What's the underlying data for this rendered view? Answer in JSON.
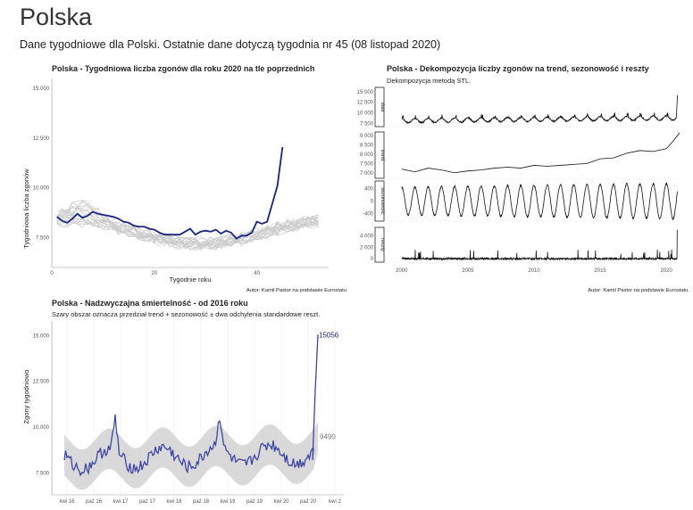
{
  "header": {
    "title": "Polska",
    "subtitle": "Dane tygodniowe dla Polski. Ostatnie dane dotyczą tygodnia nr 45 (08 listopad 2020)"
  },
  "colors": {
    "highlight": "#1a237e",
    "grey_lines": "#cccccc",
    "band": "#d9d9d9",
    "excess_line": "#3f45a3",
    "annot_grey": "#777777"
  },
  "chart_data": [
    {
      "type": "line",
      "title": "Polska - Tygodniowa liczba zgonów dla roku 2020 na tle poprzednich",
      "xlabel": "Tygodnie roku",
      "ylabel": "Tygodniowa liczba zgonów",
      "caption": "Autor: Kamil Pastor na podstawie Eurostatu",
      "xlim": [
        1,
        53
      ],
      "ylim": [
        6000,
        15500
      ],
      "x_ticks": [
        0,
        20,
        40
      ],
      "y_ticks": [
        7500,
        10000,
        12500,
        15000
      ],
      "y_tick_labels": [
        "7.500",
        "10.000",
        "12.500",
        "15.000"
      ],
      "grid": true,
      "highlight_series": {
        "x": [
          1,
          2,
          3,
          4,
          5,
          6,
          7,
          8,
          9,
          10,
          11,
          12,
          13,
          14,
          15,
          16,
          17,
          18,
          19,
          20,
          21,
          22,
          23,
          24,
          25,
          26,
          27,
          28,
          29,
          30,
          31,
          32,
          33,
          34,
          35,
          36,
          37,
          38,
          39,
          40,
          41,
          42,
          43,
          44,
          45
        ],
        "values": [
          8550,
          8350,
          8250,
          8450,
          8700,
          8500,
          8600,
          8800,
          8700,
          8650,
          8600,
          8550,
          8450,
          8300,
          8250,
          8100,
          8050,
          8050,
          7950,
          7900,
          7750,
          7650,
          7650,
          7650,
          7650,
          7800,
          7950,
          7650,
          7800,
          7850,
          7800,
          7900,
          7700,
          7850,
          7750,
          7450,
          7600,
          7600,
          7750,
          8300,
          8200,
          8300,
          9200,
          10100,
          12050
        ]
      },
      "background_series_count": 20
    },
    {
      "type": "line",
      "title": "Polska - Dekompozycja liczby zgonów na trend, sezonowość i reszty",
      "subtitle": "Dekompozycja metodą STL.",
      "caption": "Autor: Kamil Pastor na podstawie Eurostatu.",
      "xlim": [
        1999,
        2021
      ],
      "x_ticks": [
        2000,
        2005,
        2010,
        2015,
        2020
      ],
      "panels": [
        {
          "name": "data",
          "y_ticks": [
            7500,
            10000,
            12500,
            15000
          ],
          "y_tick_labels": [
            "7 500",
            "10 000",
            "12 500",
            "15 000"
          ],
          "ylim": [
            6800,
            16000
          ]
        },
        {
          "name": "trend",
          "y_ticks": [
            7000,
            7500,
            8000,
            8500,
            9000
          ],
          "y_tick_labels": [
            "7 000",
            "7 500",
            "8 000",
            "8 500",
            "9 000"
          ],
          "ylim": [
            6700,
            9200
          ]
        },
        {
          "name": "sezonowość",
          "y_ticks": [
            -400,
            0,
            400
          ],
          "y_tick_labels": [
            "-400",
            "0",
            "400"
          ],
          "ylim": [
            -650,
            650
          ]
        },
        {
          "name": "reszty",
          "y_ticks": [
            0,
            2000,
            4000
          ],
          "y_tick_labels": [
            "0",
            "2 000",
            "4 000"
          ],
          "ylim": [
            -600,
            5500
          ]
        }
      ],
      "trend_points": {
        "x": [
          2000,
          2001,
          2002,
          2003,
          2004,
          2005,
          2006,
          2007,
          2008,
          2009,
          2010,
          2011,
          2012,
          2013,
          2014,
          2015,
          2016,
          2017,
          2018,
          2019,
          2020,
          2020.5,
          2021
        ],
        "values": [
          7200,
          7050,
          7250,
          7150,
          7000,
          7100,
          7150,
          7250,
          7300,
          7250,
          7400,
          7350,
          7400,
          7450,
          7500,
          7750,
          7800,
          8050,
          8200,
          8150,
          8300,
          8700,
          9150
        ]
      }
    },
    {
      "type": "area",
      "title": "Polska - Nadzwyczajna śmiertelność - od 2016 roku",
      "subtitle": "Szary obszar oznacza przedział trend + sezonowość ± dwa odchylenia standardowe reszt.",
      "ylabel": "Zgony tygodniowo",
      "ylim": [
        6300,
        15800
      ],
      "y_ticks": [
        7500,
        10000,
        12500,
        15000
      ],
      "y_tick_labels": [
        "7.500",
        "10.000",
        "12.500",
        "15.000"
      ],
      "x_tick_labels": [
        "kwi 16",
        "paź 16",
        "kwi 17",
        "paź 17",
        "kwi 18",
        "paź 18",
        "kwi 19",
        "paź 19",
        "kwi 20",
        "paź 20",
        "kwi 2"
      ],
      "last_value_label": "15056",
      "band_end_label": "9490"
    }
  ]
}
